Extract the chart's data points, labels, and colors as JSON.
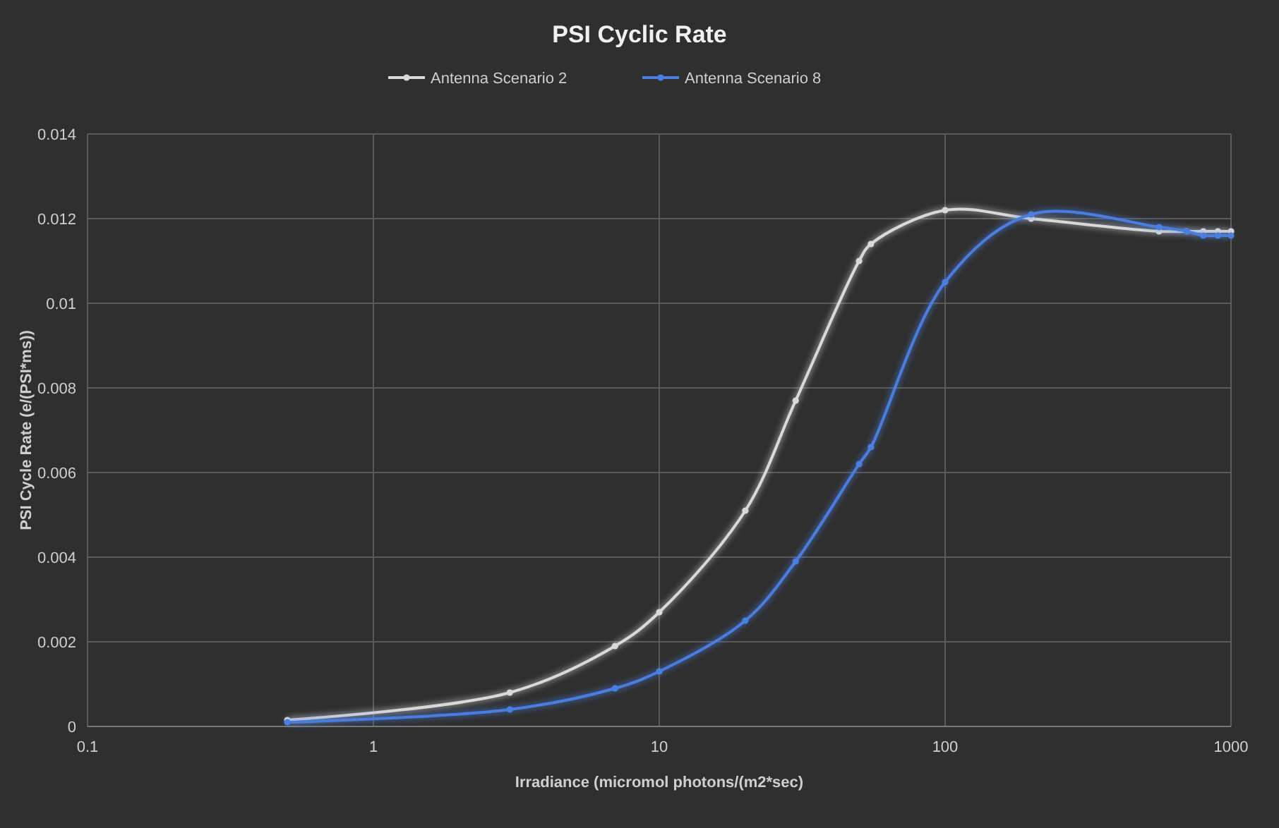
{
  "chart_data": {
    "type": "line",
    "title": "PSI Cyclic Rate",
    "xlabel": "Irradiance (micromol photons/(m2*sec)",
    "ylabel": "PSI Cycle Rate (e/(PSI*ms))",
    "log": "x",
    "xlim": [
      0.1,
      1000
    ],
    "xticks": [
      0.1,
      1,
      10,
      100,
      1000
    ],
    "ylim": [
      0,
      0.014
    ],
    "yticks": [
      0,
      0.002,
      0.004,
      0.006,
      0.008,
      0.01,
      0.012,
      0.014
    ],
    "grid": true,
    "legend": "top",
    "marker": "circle",
    "series": [
      {
        "name": "Antenna Scenario 2",
        "color": "#d9d9d9",
        "x": [
          0.5,
          3,
          7,
          10,
          20,
          30,
          50,
          55,
          100,
          200,
          560,
          700,
          800,
          900,
          1000
        ],
        "values": [
          0.00015,
          0.0008,
          0.0019,
          0.0027,
          0.0051,
          0.0077,
          0.011,
          0.0114,
          0.0122,
          0.012,
          0.0117,
          0.0117,
          0.0117,
          0.0117,
          0.0117
        ]
      },
      {
        "name": "Antenna Scenario 8",
        "color": "#4a7ee0",
        "x": [
          0.5,
          3,
          7,
          10,
          20,
          30,
          50,
          55,
          100,
          200,
          560,
          700,
          800,
          900,
          1000
        ],
        "values": [
          0.0001,
          0.0004,
          0.0009,
          0.0013,
          0.0025,
          0.0039,
          0.0062,
          0.0066,
          0.0105,
          0.0121,
          0.0118,
          0.0117,
          0.0116,
          0.0116,
          0.0116
        ]
      }
    ]
  }
}
